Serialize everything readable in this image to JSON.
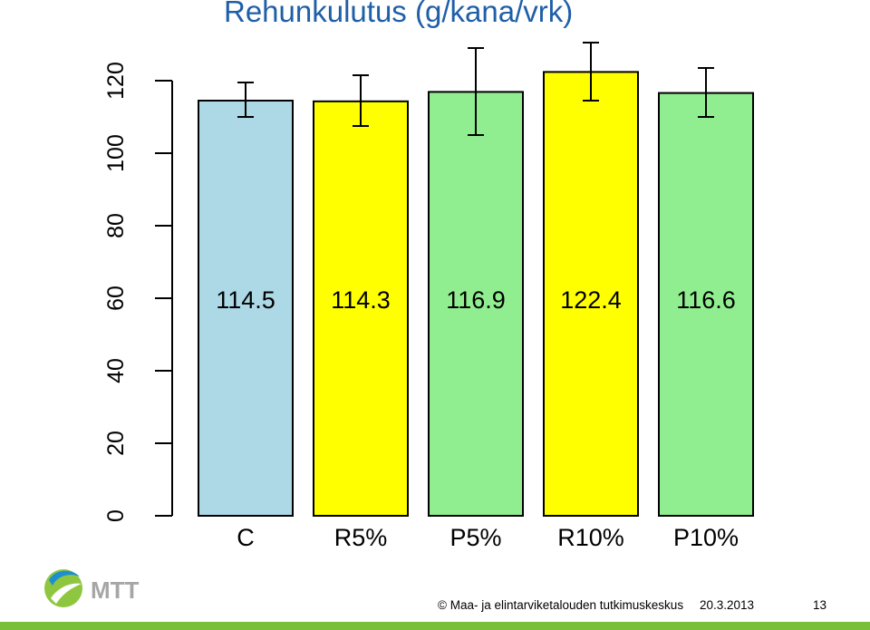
{
  "slide": {
    "title": "Rehunkulutus (g/kana/vrk)",
    "footer_org": "© Maa- ja elintarviketalouden tutkimuskeskus",
    "footer_date": "20.3.2013",
    "page_number": "13",
    "logo_text": "MTT",
    "colors": {
      "title": "#1f5fa8",
      "bottom_bar": "#79bf3a"
    }
  },
  "chart_data": {
    "type": "bar",
    "title": "Rehunkulutus (g/kana/vrk)",
    "categories": [
      "C",
      "R5%",
      "P5%",
      "R10%",
      "P10%"
    ],
    "values": [
      114.5,
      114.3,
      116.9,
      122.4,
      116.6
    ],
    "value_labels": [
      "114.5",
      "114.3",
      "116.9",
      "122.4",
      "116.6"
    ],
    "error_bars": [
      {
        "low": 110,
        "high": 119.5
      },
      {
        "low": 107.5,
        "high": 121.5
      },
      {
        "low": 105,
        "high": 129
      },
      {
        "low": 114.5,
        "high": 130.5
      },
      {
        "low": 110,
        "high": 123.5
      }
    ],
    "bar_colors": [
      "#add8e6",
      "#ffff00",
      "#90ee90",
      "#ffff00",
      "#90ee90"
    ],
    "yticks": [
      0,
      20,
      40,
      60,
      80,
      100,
      120
    ],
    "ylim": [
      0,
      120
    ],
    "grid": false,
    "legend": "none"
  }
}
